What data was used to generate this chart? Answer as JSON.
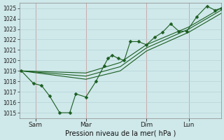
{
  "background_color": "#cfe8ea",
  "grid_color": "#b8d4d6",
  "vgrid_color": "#c8a0a0",
  "line_color": "#1a5e20",
  "marker_color": "#1a5e20",
  "xlabel": "Pression niveau de la mer( hPa )",
  "ylim": [
    1014.5,
    1025.5
  ],
  "yticks": [
    1015,
    1016,
    1017,
    1018,
    1019,
    1020,
    1021,
    1022,
    1023,
    1024,
    1025
  ],
  "xtick_labels": [
    "Sam",
    "Mar",
    "Dim",
    "Lun"
  ],
  "xtick_positions": [
    0.08,
    0.33,
    0.63,
    0.84
  ],
  "line1_x": [
    0.01,
    0.07,
    0.11,
    0.15,
    0.2,
    0.25,
    0.28,
    0.33,
    0.38,
    0.42,
    0.44,
    0.46,
    0.49,
    0.52,
    0.55,
    0.59,
    0.63,
    0.67,
    0.71,
    0.75,
    0.79,
    0.83,
    0.88,
    0.93,
    0.97,
    1.0
  ],
  "line1_y": [
    1019,
    1017.8,
    1017.6,
    1016.6,
    1015.0,
    1015.0,
    1016.8,
    1016.5,
    1018.0,
    1019.5,
    1020.2,
    1020.5,
    1020.2,
    1020.0,
    1021.8,
    1021.8,
    1021.5,
    1022.2,
    1022.7,
    1023.5,
    1022.8,
    1022.8,
    1024.2,
    1025.2,
    1024.8,
    1025.0
  ],
  "line2_x": [
    0.01,
    0.33,
    0.5,
    0.63,
    0.84,
    1.0
  ],
  "line2_y": [
    1019,
    1018.8,
    1019.8,
    1021.5,
    1023.2,
    1025.0
  ],
  "line3_x": [
    0.01,
    0.33,
    0.5,
    0.63,
    0.84,
    1.0
  ],
  "line3_y": [
    1019,
    1018.5,
    1019.4,
    1021.2,
    1023.0,
    1024.8
  ],
  "line4_x": [
    0.01,
    0.33,
    0.5,
    0.63,
    0.84,
    1.0
  ],
  "line4_y": [
    1019,
    1018.2,
    1019.0,
    1020.9,
    1022.7,
    1024.5
  ]
}
